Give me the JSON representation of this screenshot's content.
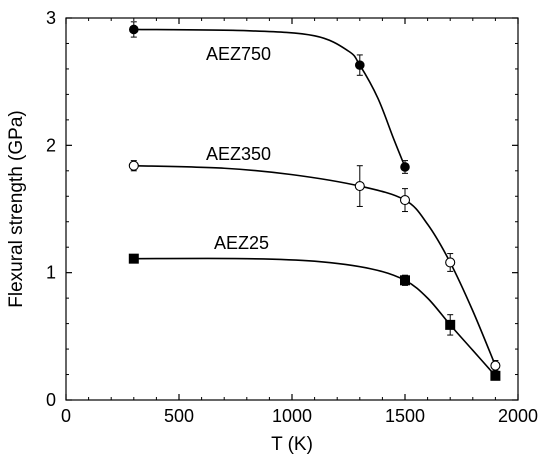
{
  "chart_data": {
    "type": "scatter",
    "title": "",
    "xlabel": "T (K)",
    "ylabel": "Flexural strength (GPa)",
    "xlim": [
      0,
      2000
    ],
    "ylim": [
      0,
      3
    ],
    "xticks": [
      0,
      500,
      1000,
      1500,
      2000
    ],
    "yticks": [
      0,
      1,
      2,
      3
    ],
    "grid": false,
    "legend": "none",
    "series": [
      {
        "name": "AEZ750",
        "marker": "filled-circle",
        "x": [
          300,
          1300,
          1500
        ],
        "y": [
          2.91,
          2.63,
          1.83
        ],
        "err": [
          0.06,
          0.08,
          0.05
        ],
        "curve": [
          [
            300,
            2.91
          ],
          [
            800,
            2.9
          ],
          [
            1100,
            2.86
          ],
          [
            1250,
            2.74
          ],
          [
            1300,
            2.63
          ],
          [
            1380,
            2.37
          ],
          [
            1450,
            2.05
          ],
          [
            1500,
            1.83
          ]
        ]
      },
      {
        "name": "AEZ350",
        "marker": "open-circle",
        "x": [
          300,
          1300,
          1500,
          1700,
          1900
        ],
        "y": [
          1.84,
          1.68,
          1.57,
          1.08,
          0.27
        ],
        "err": [
          0.04,
          0.16,
          0.09,
          0.07,
          0.04
        ],
        "curve": [
          [
            300,
            1.84
          ],
          [
            700,
            1.82
          ],
          [
            1000,
            1.77
          ],
          [
            1300,
            1.68
          ],
          [
            1500,
            1.57
          ],
          [
            1600,
            1.38
          ],
          [
            1700,
            1.08
          ],
          [
            1800,
            0.7
          ],
          [
            1900,
            0.27
          ]
        ]
      },
      {
        "name": "AEZ25",
        "marker": "filled-square",
        "x": [
          300,
          1500,
          1700,
          1900
        ],
        "y": [
          1.11,
          0.94,
          0.59,
          0.19
        ],
        "err": [
          0.03,
          0.04,
          0.08,
          0.03
        ],
        "curve": [
          [
            300,
            1.11
          ],
          [
            800,
            1.11
          ],
          [
            1100,
            1.09
          ],
          [
            1350,
            1.03
          ],
          [
            1500,
            0.94
          ],
          [
            1600,
            0.8
          ],
          [
            1700,
            0.59
          ],
          [
            1800,
            0.39
          ],
          [
            1900,
            0.19
          ]
        ]
      }
    ]
  }
}
